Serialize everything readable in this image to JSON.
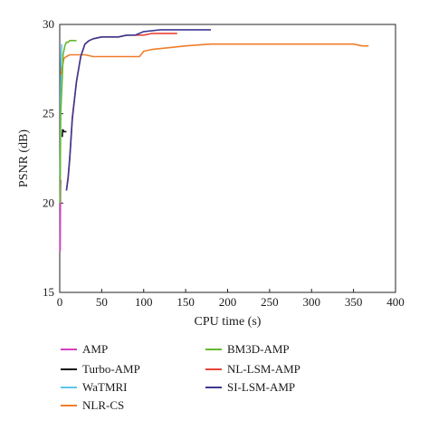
{
  "chart_data": {
    "type": "line",
    "xlabel": "CPU time (s)",
    "ylabel": "PSNR (dB)",
    "xlim": [
      0,
      400
    ],
    "ylim": [
      15,
      30
    ],
    "xticks": [
      0,
      50,
      100,
      150,
      200,
      250,
      300,
      350,
      400
    ],
    "yticks": [
      15,
      20,
      25,
      30
    ],
    "grid": false,
    "legend_position": "below plot, two columns",
    "series": [
      {
        "name": "AMP",
        "color": "#d63fbf",
        "x": [
          0.5,
          0.8,
          1.0,
          1.3
        ],
        "y": [
          17.3,
          19.5,
          20.8,
          21.3
        ]
      },
      {
        "name": "Turbo-AMP",
        "color": "#111111",
        "x": [
          3.0,
          3.5,
          4.0,
          5.0,
          6.0,
          7.0,
          8.0
        ],
        "y": [
          23.7,
          24.1,
          24.1,
          24.0,
          24.0,
          24.0,
          24.0
        ]
      },
      {
        "name": "WaTMRI",
        "color": "#5ec7e8",
        "x": [
          0.6,
          1.0,
          1.5,
          2.0,
          2.5
        ],
        "y": [
          21.5,
          25.8,
          27.8,
          28.6,
          28.9
        ]
      },
      {
        "name": "NLR-CS",
        "color": "#f07e2b",
        "x": [
          1.5,
          3,
          5,
          8,
          12,
          20,
          30,
          40,
          50,
          70,
          90,
          95,
          100,
          110,
          130,
          150,
          180,
          200,
          230,
          250,
          255,
          280,
          300,
          320,
          350,
          360,
          368
        ],
        "y": [
          27.2,
          27.6,
          28.1,
          28.2,
          28.3,
          28.3,
          28.3,
          28.2,
          28.2,
          28.2,
          28.2,
          28.2,
          28.5,
          28.6,
          28.7,
          28.8,
          28.9,
          28.9,
          28.9,
          28.9,
          28.9,
          28.9,
          28.9,
          28.9,
          28.9,
          28.8,
          28.8
        ]
      },
      {
        "name": "BM3D-AMP",
        "color": "#66b82e",
        "x": [
          0.4,
          0.8,
          1.2,
          2.0,
          3.0,
          4.0,
          6.0,
          8.0,
          10.0,
          12.0,
          15.0,
          20.0
        ],
        "y": [
          20.0,
          22.5,
          25.0,
          26.0,
          27.0,
          28.3,
          28.8,
          29.0,
          29.0,
          29.1,
          29.1,
          29.1
        ]
      },
      {
        "name": "NL-LSM-AMP",
        "color": "#e8433a",
        "x": [
          8,
          10,
          12,
          15,
          20,
          25,
          30,
          35,
          40,
          50,
          60,
          70,
          80,
          90,
          100,
          110,
          120,
          130,
          140
        ],
        "y": [
          20.7,
          21.5,
          22.6,
          24.8,
          26.8,
          28.2,
          28.9,
          29.1,
          29.2,
          29.3,
          29.3,
          29.3,
          29.4,
          29.4,
          29.4,
          29.5,
          29.5,
          29.5,
          29.5
        ]
      },
      {
        "name": "SI-LSM-AMP",
        "color": "#3c3a93",
        "x": [
          8,
          10,
          12,
          15,
          20,
          25,
          30,
          35,
          40,
          50,
          60,
          70,
          80,
          90,
          100,
          120,
          140,
          160,
          180
        ],
        "y": [
          20.7,
          21.4,
          22.5,
          24.7,
          26.8,
          28.2,
          28.9,
          29.1,
          29.2,
          29.3,
          29.3,
          29.3,
          29.4,
          29.4,
          29.6,
          29.7,
          29.7,
          29.7,
          29.7
        ]
      }
    ]
  }
}
